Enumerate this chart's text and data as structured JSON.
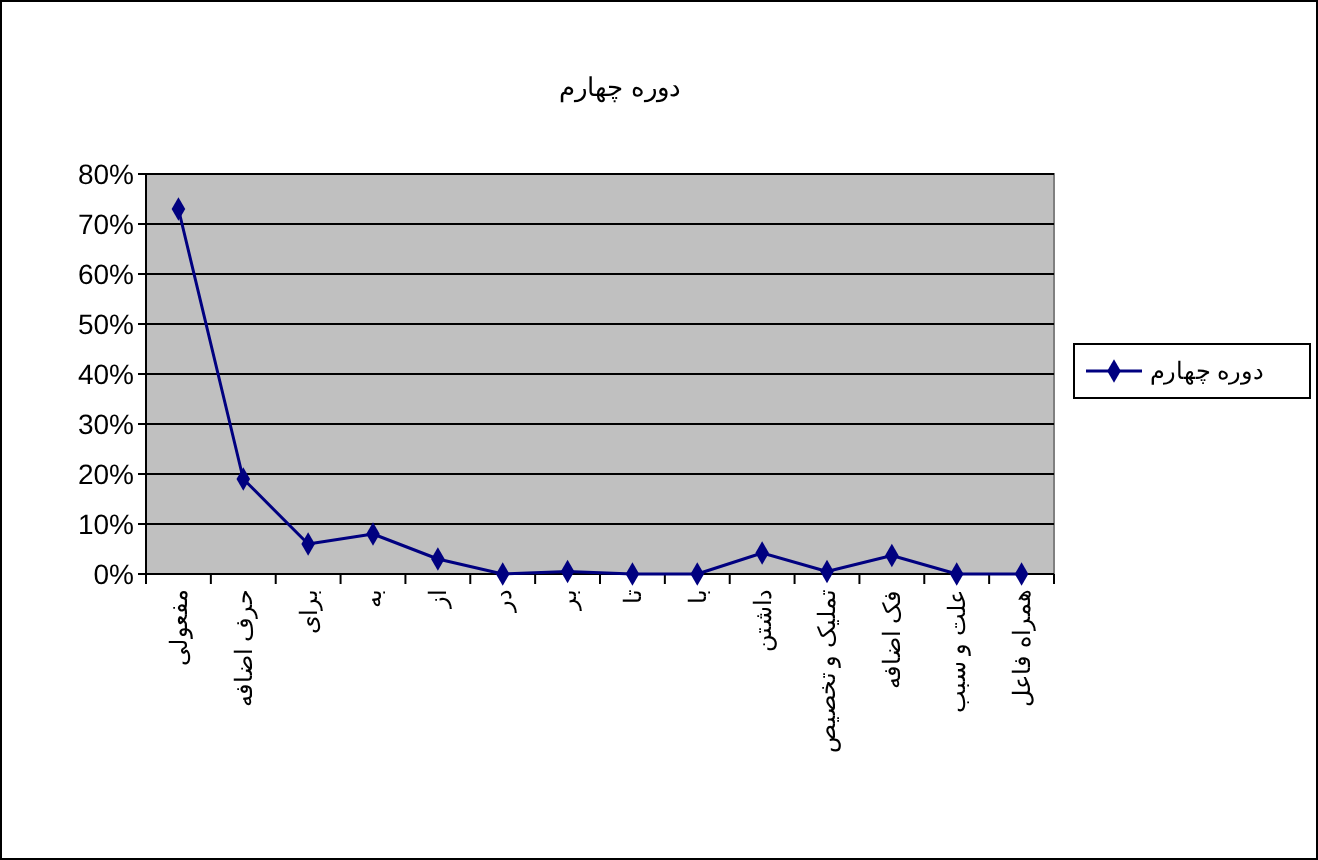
{
  "chart_data": {
    "type": "line",
    "title": "دوره چهارم",
    "categories": [
      "مفعولی",
      "حرف اضافه",
      "برای",
      "به",
      "از",
      "در",
      "بر",
      "تا",
      "با",
      "داشتن",
      "تملیک و تخصیص",
      "فک اضافه",
      "علت و سبب",
      "همراه فاعل"
    ],
    "series": [
      {
        "name": "دوره چهارم",
        "color": "#000080",
        "values": [
          73,
          19,
          6,
          8,
          3,
          0,
          0.5,
          0,
          0,
          4.2,
          0.5,
          3.7,
          0,
          0
        ]
      }
    ],
    "ylim": [
      0,
      80
    ],
    "yticks": [
      {
        "value": 0,
        "label": "0%"
      },
      {
        "value": 10,
        "label": "10%"
      },
      {
        "value": 20,
        "label": "20%"
      },
      {
        "value": 30,
        "label": "30%"
      },
      {
        "value": 40,
        "label": "40%"
      },
      {
        "value": 50,
        "label": "50%"
      },
      {
        "value": 60,
        "label": "60%"
      },
      {
        "value": 70,
        "label": "70%"
      },
      {
        "value": 80,
        "label": "80%"
      }
    ],
    "grid": "y",
    "legend": "right",
    "marker": "diamond",
    "line_style": "solid"
  }
}
